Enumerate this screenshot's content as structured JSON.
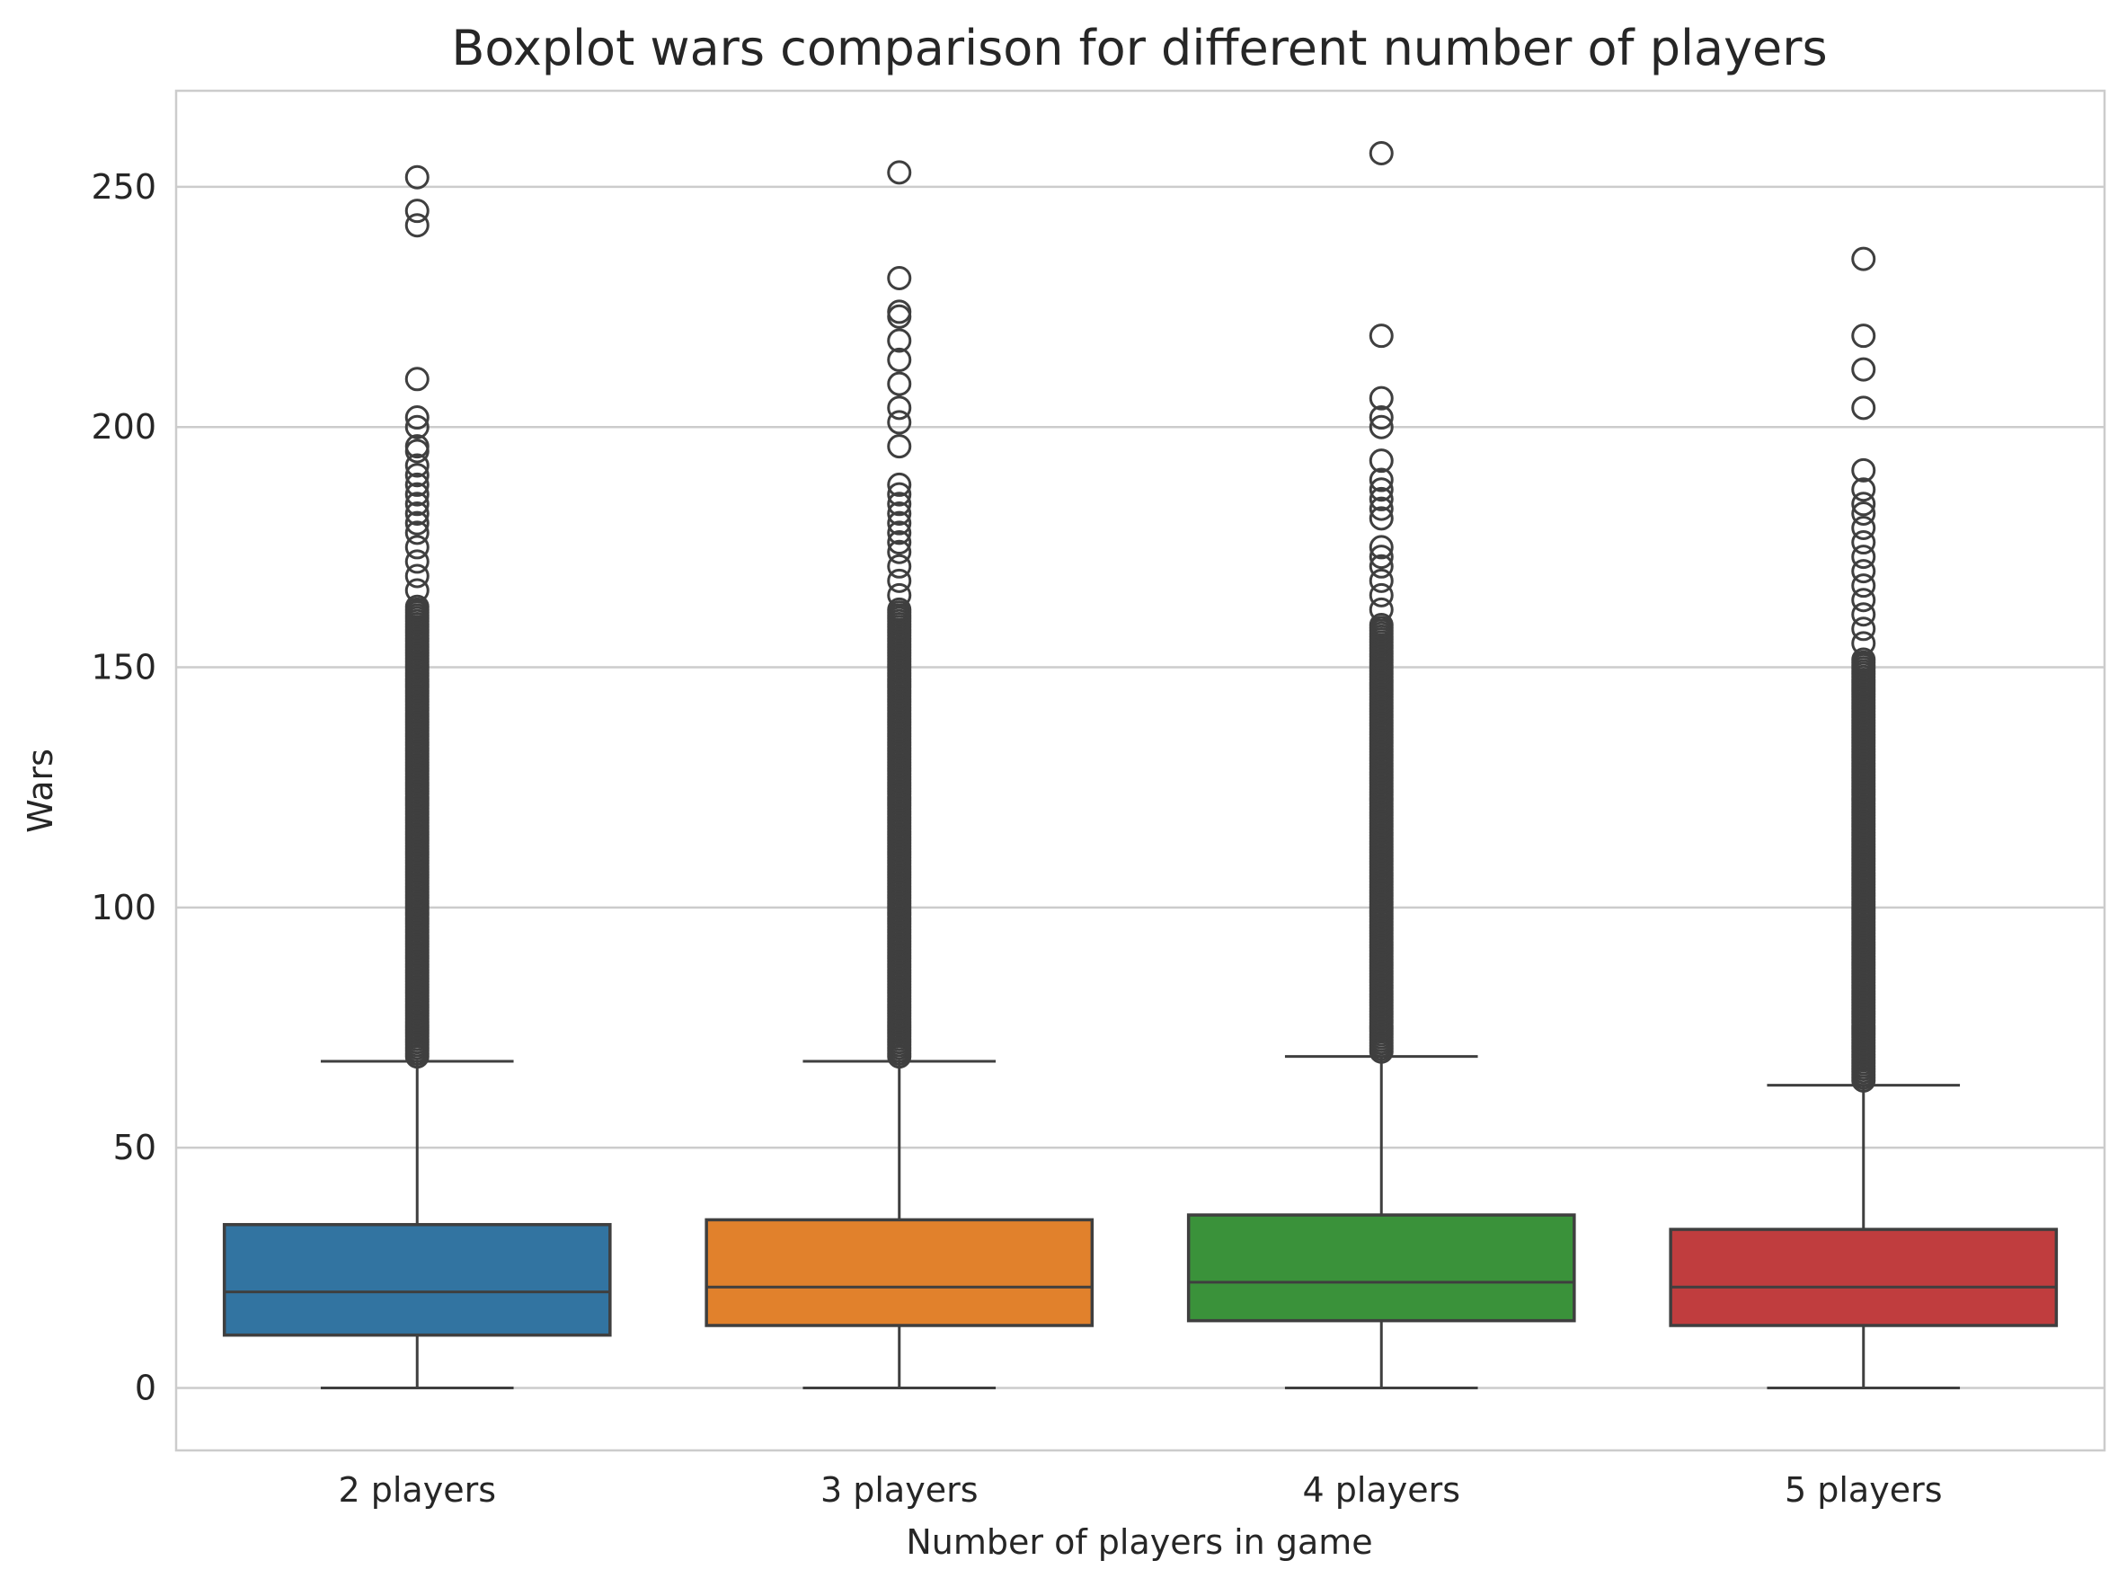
{
  "chart_data": {
    "type": "boxplot",
    "title": "Boxplot wars comparison for different number of players",
    "xlabel": "Number of players in game",
    "ylabel": "Wars",
    "ylim": [
      -13,
      270
    ],
    "yticks": [
      0,
      50,
      100,
      150,
      200,
      250
    ],
    "grid": "horizontal",
    "categories": [
      "2 players",
      "3 players",
      "4 players",
      "5 players"
    ],
    "series": [
      {
        "category": "2 players",
        "color": "#3274a1",
        "whisker_low": 0,
        "q1": 11,
        "median": 20,
        "q3": 34,
        "whisker_high": 68,
        "outliers": [
          252,
          245,
          242,
          210,
          202,
          200,
          196,
          195,
          192,
          190,
          188,
          186,
          184,
          182,
          180,
          178,
          175,
          172,
          169,
          166
        ],
        "dense_outliers": [
          69,
          163
        ]
      },
      {
        "category": "3 players",
        "color": "#e1812c",
        "whisker_low": 0,
        "q1": 13,
        "median": 21,
        "q3": 35,
        "whisker_high": 68,
        "outliers": [
          253,
          231,
          224,
          223,
          218,
          214,
          209,
          204,
          201,
          196,
          188,
          186,
          184,
          182,
          180,
          178,
          176,
          174,
          171,
          168,
          165
        ],
        "dense_outliers": [
          69,
          162
        ]
      },
      {
        "category": "4 players",
        "color": "#3a923a",
        "whisker_low": 0,
        "q1": 14,
        "median": 22,
        "q3": 36,
        "whisker_high": 69,
        "outliers": [
          257,
          219,
          206,
          202,
          200,
          193,
          189,
          187,
          185,
          183,
          181,
          175,
          173,
          171,
          168,
          165,
          162
        ],
        "dense_outliers": [
          70,
          159
        ]
      },
      {
        "category": "5 players",
        "color": "#c03d3e",
        "whisker_low": 0,
        "q1": 13,
        "median": 21,
        "q3": 33,
        "whisker_high": 63,
        "outliers": [
          235,
          219,
          212,
          204,
          191,
          187,
          184,
          182,
          179,
          176,
          173,
          170,
          167,
          164,
          161,
          158,
          155
        ],
        "dense_outliers": [
          64,
          152
        ]
      }
    ]
  }
}
